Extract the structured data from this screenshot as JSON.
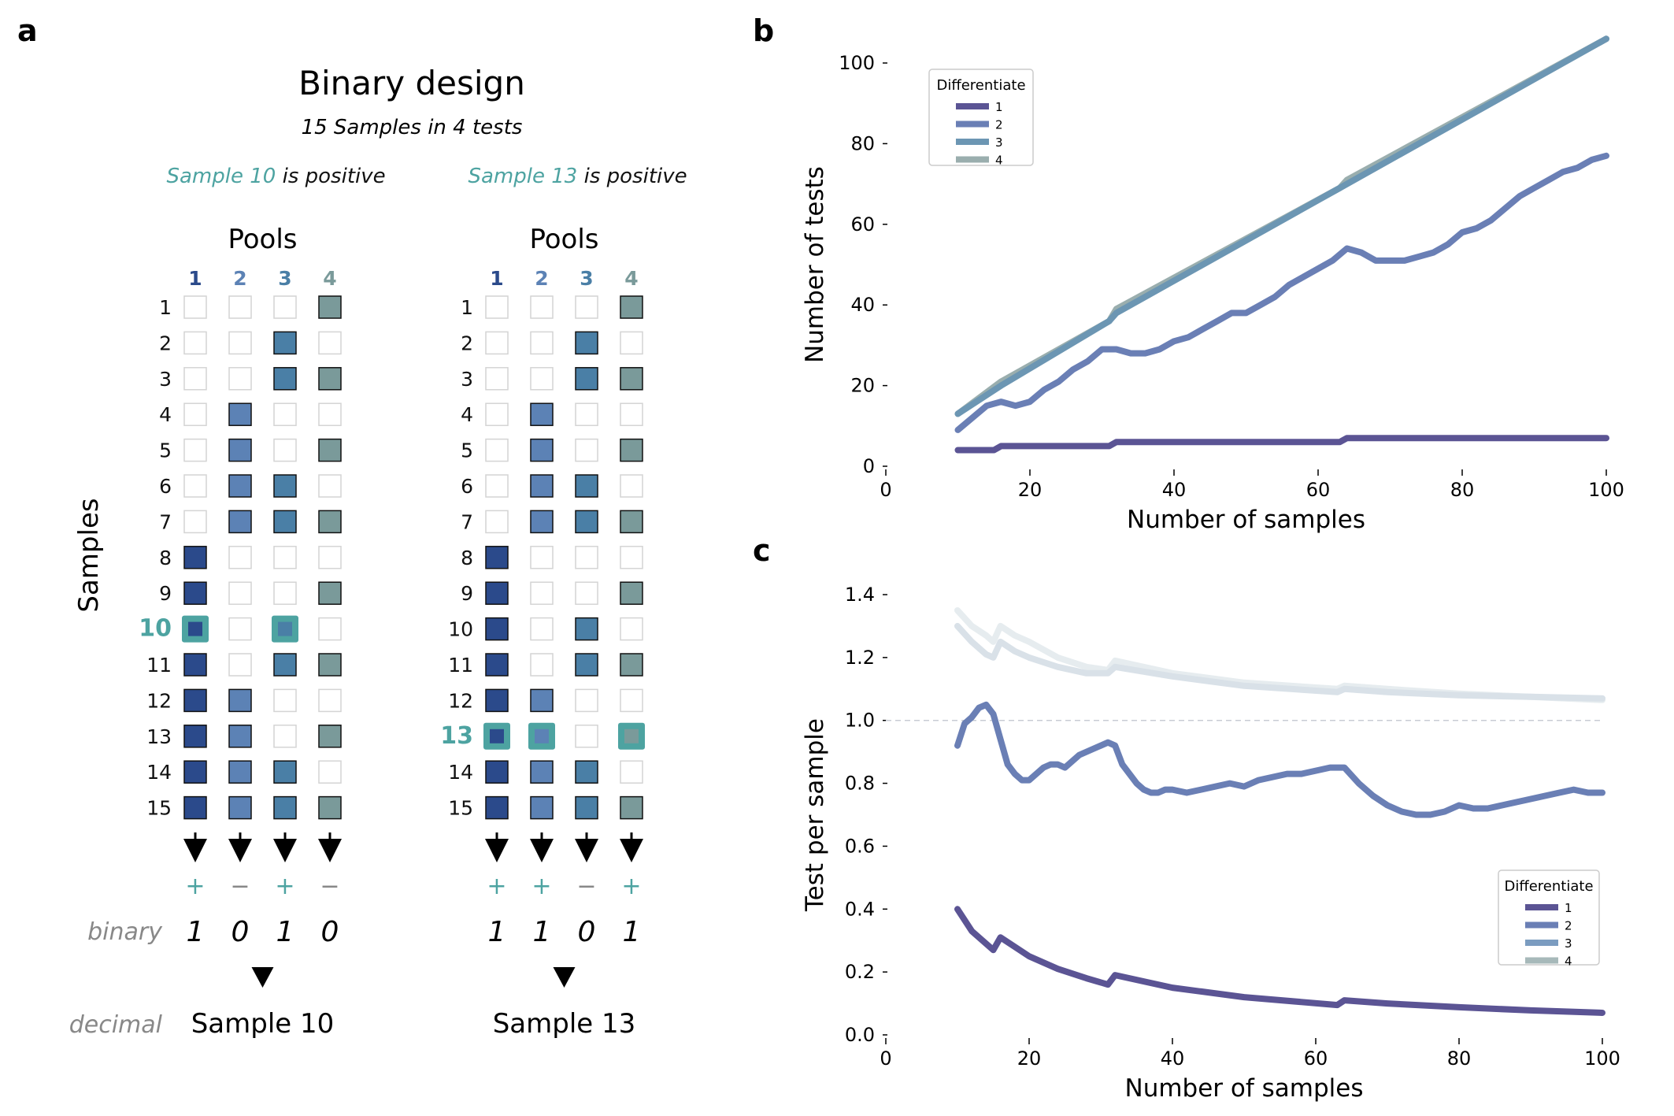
{
  "panel_a": {
    "label": "a",
    "title": "Binary design",
    "subtitle": "15 Samples in 4 tests",
    "samples_label": "Samples",
    "binary_label": "binary",
    "decimal_label": "decimal",
    "pool_header": "Pools",
    "pool_numbers": [
      "1",
      "2",
      "3",
      "4"
    ],
    "sample_numbers": [
      "1",
      "2",
      "3",
      "4",
      "5",
      "6",
      "7",
      "8",
      "9",
      "10",
      "11",
      "12",
      "13",
      "14",
      "15"
    ],
    "pool_colors": [
      "#2b4a8b",
      "#5c82b5",
      "#4a7fa6",
      "#7a9a9a"
    ],
    "accent_color": "#4da3a1",
    "matrix": [
      [
        0,
        0,
        0,
        1
      ],
      [
        0,
        0,
        1,
        0
      ],
      [
        0,
        0,
        1,
        1
      ],
      [
        0,
        1,
        0,
        0
      ],
      [
        0,
        1,
        0,
        1
      ],
      [
        0,
        1,
        1,
        0
      ],
      [
        0,
        1,
        1,
        1
      ],
      [
        1,
        0,
        0,
        0
      ],
      [
        1,
        0,
        0,
        1
      ],
      [
        1,
        0,
        1,
        0
      ],
      [
        1,
        0,
        1,
        1
      ],
      [
        1,
        1,
        0,
        0
      ],
      [
        1,
        1,
        0,
        1
      ],
      [
        1,
        1,
        1,
        0
      ],
      [
        1,
        1,
        1,
        1
      ]
    ],
    "designs": [
      {
        "positive_sample": "Sample 10",
        "positive_text": "is positive",
        "highlight_row": "10",
        "signs": [
          "+",
          "−",
          "+",
          "−"
        ],
        "bits": [
          "1",
          "0",
          "1",
          "0"
        ],
        "result": "Sample 10"
      },
      {
        "positive_sample": "Sample 13",
        "positive_text": "is positive",
        "highlight_row": "13",
        "signs": [
          "+",
          "+",
          "−",
          "+"
        ],
        "bits": [
          "1",
          "1",
          "0",
          "1"
        ],
        "result": "Sample 13"
      }
    ]
  },
  "chart_data": [
    {
      "panel": "b",
      "type": "line",
      "title": "",
      "xlabel": "Number of samples",
      "ylabel": "Number of tests",
      "xlim": [
        0,
        100
      ],
      "ylim": [
        0,
        100
      ],
      "xticks": [
        "0",
        "20",
        "40",
        "60",
        "80",
        "100"
      ],
      "yticks": [
        "0",
        "20",
        "40",
        "60",
        "80",
        "100"
      ],
      "legend_title": "Differentiate",
      "legend_position": "top-left",
      "series": [
        {
          "name": "1",
          "color": "#5b5494",
          "x": [
            10,
            15,
            16,
            31,
            32,
            63,
            64,
            100
          ],
          "y": [
            4,
            4,
            5,
            5,
            6,
            6,
            7,
            7
          ]
        },
        {
          "name": "2",
          "color": "#6a7fb5",
          "x": [
            10,
            12,
            14,
            16,
            18,
            20,
            22,
            24,
            26,
            28,
            30,
            32,
            34,
            36,
            38,
            40,
            42,
            44,
            46,
            48,
            50,
            52,
            54,
            56,
            58,
            60,
            62,
            64,
            66,
            68,
            70,
            72,
            74,
            76,
            78,
            80,
            82,
            84,
            86,
            88,
            90,
            92,
            94,
            96,
            98,
            100
          ],
          "y": [
            9,
            12,
            15,
            16,
            15,
            16,
            19,
            21,
            24,
            26,
            29,
            29,
            28,
            28,
            29,
            31,
            32,
            34,
            36,
            38,
            38,
            40,
            42,
            45,
            47,
            49,
            51,
            54,
            53,
            51,
            51,
            51,
            52,
            53,
            55,
            58,
            59,
            61,
            64,
            67,
            69,
            71,
            73,
            74,
            76,
            77
          ]
        },
        {
          "name": "3",
          "color": "#6c96b3",
          "x": [
            10,
            16,
            31,
            32,
            63,
            64,
            100
          ],
          "y": [
            13,
            20,
            36,
            38,
            69,
            70,
            106
          ]
        },
        {
          "name": "4",
          "color": "#9aaeae",
          "x": [
            10,
            16,
            31,
            32,
            63,
            64,
            100
          ],
          "y": [
            13,
            21,
            36,
            39,
            69,
            71,
            106
          ]
        }
      ]
    },
    {
      "panel": "c",
      "type": "line",
      "title": "",
      "xlabel": "Number of samples",
      "ylabel": "Test per sample",
      "xlim": [
        0,
        100
      ],
      "ylim": [
        0.0,
        1.4
      ],
      "xticks": [
        "0",
        "20",
        "40",
        "60",
        "80",
        "100"
      ],
      "yticks": [
        "0.0",
        "0.2",
        "0.4",
        "0.6",
        "0.8",
        "1.0",
        "1.2",
        "1.4"
      ],
      "reference_line": 1.0,
      "legend_title": "Differentiate",
      "legend_position": "bottom-right",
      "legend_colors": [
        "#5b5494",
        "#6a7fb5",
        "#7b9cc0",
        "#a7b9ba"
      ],
      "series": [
        {
          "name": "1",
          "color": "#5b5494",
          "x": [
            10,
            12,
            14,
            15,
            16,
            18,
            20,
            24,
            28,
            31,
            32,
            40,
            50,
            63,
            64,
            70,
            80,
            90,
            100
          ],
          "y": [
            0.4,
            0.33,
            0.29,
            0.27,
            0.31,
            0.28,
            0.25,
            0.21,
            0.18,
            0.16,
            0.19,
            0.15,
            0.12,
            0.095,
            0.11,
            0.1,
            0.088,
            0.078,
            0.07
          ]
        },
        {
          "name": "2",
          "color": "#6a7fb5",
          "x": [
            10,
            11,
            12,
            13,
            14,
            15,
            16,
            17,
            18,
            19,
            20,
            21,
            22,
            23,
            24,
            25,
            26,
            27,
            28,
            29,
            30,
            31,
            32,
            33,
            34,
            35,
            36,
            37,
            38,
            39,
            40,
            42,
            44,
            46,
            48,
            50,
            52,
            54,
            56,
            58,
            60,
            62,
            64,
            66,
            68,
            70,
            72,
            74,
            76,
            78,
            80,
            82,
            84,
            86,
            88,
            90,
            92,
            94,
            96,
            98,
            100
          ],
          "y": [
            0.92,
            0.99,
            1.01,
            1.04,
            1.05,
            1.02,
            0.94,
            0.86,
            0.83,
            0.81,
            0.81,
            0.83,
            0.85,
            0.86,
            0.86,
            0.85,
            0.87,
            0.89,
            0.9,
            0.91,
            0.92,
            0.93,
            0.92,
            0.86,
            0.83,
            0.8,
            0.78,
            0.77,
            0.77,
            0.78,
            0.78,
            0.77,
            0.78,
            0.79,
            0.8,
            0.79,
            0.81,
            0.82,
            0.83,
            0.83,
            0.84,
            0.85,
            0.85,
            0.8,
            0.76,
            0.73,
            0.71,
            0.7,
            0.7,
            0.71,
            0.73,
            0.72,
            0.72,
            0.73,
            0.74,
            0.75,
            0.76,
            0.77,
            0.78,
            0.77,
            0.77
          ]
        },
        {
          "name": "3",
          "color": "#d9e1e8",
          "x": [
            10,
            12,
            14,
            15,
            16,
            18,
            20,
            24,
            28,
            31,
            32,
            40,
            50,
            63,
            64,
            70,
            80,
            90,
            100
          ],
          "y": [
            1.3,
            1.25,
            1.21,
            1.2,
            1.25,
            1.22,
            1.2,
            1.17,
            1.15,
            1.15,
            1.17,
            1.14,
            1.11,
            1.09,
            1.1,
            1.09,
            1.08,
            1.075,
            1.07
          ]
        },
        {
          "name": "4",
          "color": "#e6ecef",
          "x": [
            10,
            12,
            14,
            15,
            16,
            18,
            20,
            24,
            28,
            31,
            32,
            40,
            50,
            63,
            64,
            70,
            80,
            90,
            100
          ],
          "y": [
            1.35,
            1.3,
            1.27,
            1.25,
            1.3,
            1.27,
            1.25,
            1.2,
            1.17,
            1.16,
            1.19,
            1.15,
            1.12,
            1.1,
            1.11,
            1.1,
            1.085,
            1.075,
            1.065
          ]
        }
      ]
    }
  ]
}
